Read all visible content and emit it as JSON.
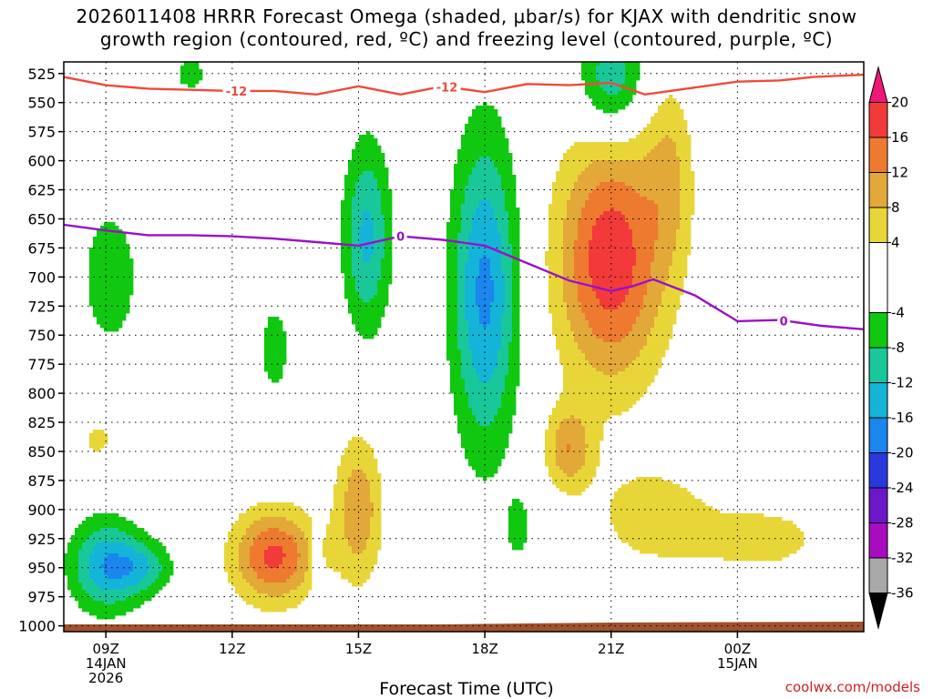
{
  "chart_data": {
    "type": "heatmap",
    "title_line1": "2026011408 HRRR Forecast Omega (shaded, μbar/s) for KJAX with dendritic snow",
    "title_line2": "growth region (contoured, red, ºC) and freezing level (contoured, purple, ºC)",
    "xlabel": "Forecast Time (UTC)",
    "credit": "coolwx.com/models",
    "y_axis": {
      "unit": "hPa",
      "ticks": [
        "525",
        "550",
        "575",
        "600",
        "625",
        "650",
        "675",
        "700",
        "725",
        "750",
        "775",
        "800",
        "825",
        "850",
        "875",
        "900",
        "925",
        "950",
        "975",
        "1000"
      ],
      "range": [
        515,
        1005
      ]
    },
    "x_axis": {
      "unit": "forecast hour",
      "range": [
        0.0,
        19.0
      ],
      "ticks": [
        {
          "h": 1,
          "l1": "09Z",
          "l2": "14JAN",
          "l3": "2026"
        },
        {
          "h": 4,
          "l1": "12Z",
          "l2": "",
          "l3": ""
        },
        {
          "h": 7,
          "l1": "15Z",
          "l2": "",
          "l3": ""
        },
        {
          "h": 10,
          "l1": "18Z",
          "l2": "",
          "l3": ""
        },
        {
          "h": 13,
          "l1": "21Z",
          "l2": "",
          "l3": ""
        },
        {
          "h": 16,
          "l1": "00Z",
          "l2": "15JAN",
          "l3": ""
        }
      ]
    },
    "colorbar": {
      "labels": [
        "20",
        "16",
        "12",
        "8",
        "4",
        "-4",
        "-8",
        "-12",
        "-16",
        "-20",
        "-24",
        "-28",
        "-32",
        "-36"
      ],
      "bins": [
        {
          "lo": 20,
          "hi": 24,
          "color": "#ee1877"
        },
        {
          "lo": 16,
          "hi": 20,
          "color": "#f23a3a"
        },
        {
          "lo": 12,
          "hi": 16,
          "color": "#ee7a30"
        },
        {
          "lo": 8,
          "hi": 12,
          "color": "#e2a838"
        },
        {
          "lo": 4,
          "hi": 8,
          "color": "#e8d638"
        },
        {
          "lo": -4,
          "hi": 4,
          "color": "#ffffff"
        },
        {
          "lo": -8,
          "hi": -4,
          "color": "#10c810"
        },
        {
          "lo": -12,
          "hi": -8,
          "color": "#19c89a"
        },
        {
          "lo": -16,
          "hi": -12,
          "color": "#14b4d8"
        },
        {
          "lo": -20,
          "hi": -16,
          "color": "#1a86ee"
        },
        {
          "lo": -24,
          "hi": -20,
          "color": "#2a38e0"
        },
        {
          "lo": -28,
          "hi": -24,
          "color": "#6a18c8"
        },
        {
          "lo": -32,
          "hi": -28,
          "color": "#a80cc0"
        },
        {
          "lo": -36,
          "hi": -32,
          "color": "#a8a8a8"
        },
        {
          "lo": -40,
          "hi": -36,
          "color": "#000000"
        }
      ]
    },
    "omega_features": [
      {
        "t": 1.0,
        "p": 948,
        "st": 0.6,
        "sp": 28,
        "amp": -15
      },
      {
        "t": 1.9,
        "p": 950,
        "st": 0.5,
        "sp": 16,
        "amp": -9
      },
      {
        "t": 1.1,
        "p": 700,
        "st": 0.5,
        "sp": 45,
        "amp": -7
      },
      {
        "t": 0.8,
        "p": 840,
        "st": 0.35,
        "sp": 14,
        "amp": 5
      },
      {
        "t": 3.0,
        "p": 525,
        "st": 0.3,
        "sp": 12,
        "amp": -6
      },
      {
        "t": 5.0,
        "p": 940,
        "st": 0.7,
        "sp": 28,
        "amp": 17
      },
      {
        "t": 5.0,
        "p": 762,
        "st": 0.3,
        "sp": 32,
        "amp": -6
      },
      {
        "t": 7.2,
        "p": 665,
        "st": 0.4,
        "sp": 58,
        "amp": -13
      },
      {
        "t": 7.0,
        "p": 900,
        "st": 0.4,
        "sp": 45,
        "amp": 11
      },
      {
        "t": 6.0,
        "p": 945,
        "st": 0.1,
        "sp": 22,
        "amp": -6
      },
      {
        "t": 10.0,
        "p": 712,
        "st": 0.55,
        "sp": 95,
        "amp": -17
      },
      {
        "t": 10.8,
        "p": 915,
        "st": 0.22,
        "sp": 20,
        "amp": -6
      },
      {
        "t": 13.0,
        "p": 530,
        "st": 0.55,
        "sp": 35,
        "amp": -12
      },
      {
        "t": 13.0,
        "p": 685,
        "st": 0.9,
        "sp": 75,
        "amp": 19
      },
      {
        "t": 12.0,
        "p": 848,
        "st": 0.4,
        "sp": 25,
        "amp": 11
      },
      {
        "t": 14.0,
        "p": 905,
        "st": 0.9,
        "sp": 28,
        "amp": 7
      },
      {
        "t": 16.5,
        "p": 925,
        "st": 1.2,
        "sp": 22,
        "amp": 6
      },
      {
        "t": 14.4,
        "p": 610,
        "st": 0.4,
        "sp": 55,
        "amp": 7
      }
    ],
    "dgz_contour": {
      "label": "-12",
      "color": "#f04a3a",
      "points": [
        [
          0,
          528
        ],
        [
          1,
          535
        ],
        [
          2,
          538
        ],
        [
          3,
          539
        ],
        [
          4,
          540
        ],
        [
          5,
          540
        ],
        [
          6,
          543
        ],
        [
          7,
          536
        ],
        [
          8,
          543
        ],
        [
          9,
          536
        ],
        [
          10,
          541
        ],
        [
          11,
          534
        ],
        [
          12,
          535
        ],
        [
          13,
          533
        ],
        [
          13.8,
          543
        ],
        [
          15,
          537
        ],
        [
          16,
          532
        ],
        [
          17,
          531
        ],
        [
          17.8,
          528
        ],
        [
          19,
          526
        ]
      ],
      "label_positions": [
        4.1,
        9.1
      ]
    },
    "freezing_contour": {
      "label": "0",
      "color": "#9a10c8",
      "points": [
        [
          0,
          655
        ],
        [
          1,
          660
        ],
        [
          2,
          664
        ],
        [
          3,
          664
        ],
        [
          4,
          665
        ],
        [
          5,
          667
        ],
        [
          6,
          670
        ],
        [
          7,
          673
        ],
        [
          8,
          665
        ],
        [
          9,
          668
        ],
        [
          10,
          673
        ],
        [
          11,
          688
        ],
        [
          12,
          703
        ],
        [
          13,
          712
        ],
        [
          13.5,
          708
        ],
        [
          14,
          702
        ],
        [
          15,
          716
        ],
        [
          16,
          738
        ],
        [
          17,
          737
        ],
        [
          18,
          742
        ],
        [
          19,
          745
        ]
      ],
      "label_positions": [
        8.0,
        17.1
      ]
    },
    "terrain_color": "#a0522d"
  }
}
